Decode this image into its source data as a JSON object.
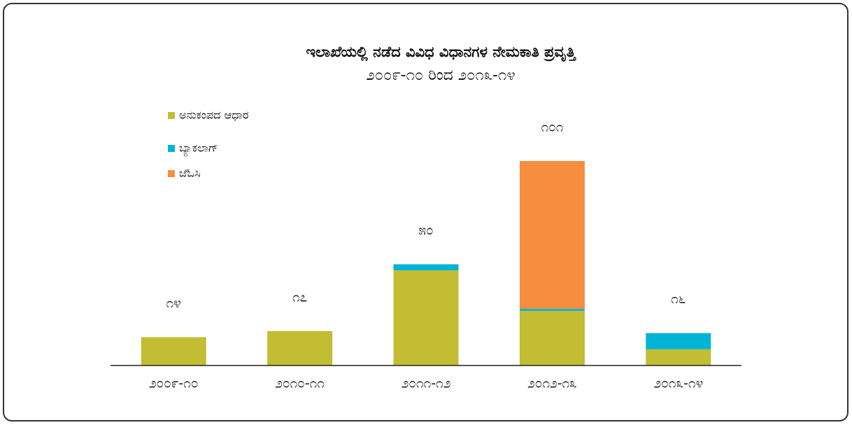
{
  "chart_data": {
    "type": "stacked-bar",
    "title": "ಇಲಾಖೆಯಲ್ಲಿ ನಡೆದ ವಿವಿಧ ವಿಧಾನಗಳ ನೇಮಕಾತಿ ಪ್ರವೃತ್ತಿ",
    "subtitle": "೨೦೦೯-೧೦ ರಿಂದ ೨೦೧೩-೧೪",
    "categories": [
      "೨೦೦೯-೧೦",
      "೨೦೧೦-೧೧",
      "೨೦೧೧-೧೨",
      "೨೦೧೨-೧೩",
      "೨೦೧೩-೧೪"
    ],
    "series": [
      {
        "name": "ಅನುಕಂಪದ ಆಧಾರ",
        "color": "#c2bd32",
        "values": [
          14,
          17,
          47,
          27,
          8
        ]
      },
      {
        "name": "ಬ್ಯಾಕಲಾಗ್",
        "color": "#00b4d8",
        "values": [
          0,
          0,
          3,
          1,
          8
        ]
      },
      {
        "name": "ಜೆಓಸಿ",
        "color": "#f68d3f",
        "values": [
          0,
          0,
          0,
          73,
          0
        ]
      }
    ],
    "totals": [
      14,
      17,
      50,
      101,
      16
    ],
    "total_labels": [
      "೧೪",
      "೧೭",
      "೫೦",
      "೧೦೧",
      "೧೬"
    ],
    "ylim": [
      0,
      110
    ],
    "legend": "top-left"
  }
}
